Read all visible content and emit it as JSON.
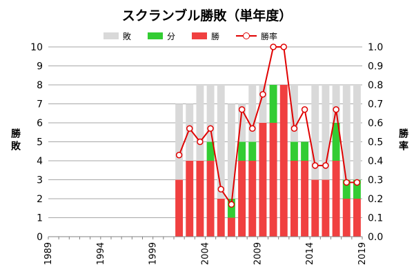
{
  "chart_data": {
    "type": "bar",
    "title": "スクランブル勝敗（単年度）",
    "years": [
      1989,
      1990,
      1991,
      1992,
      1993,
      1994,
      1995,
      1996,
      1997,
      1998,
      1999,
      2000,
      2001,
      2002,
      2003,
      2004,
      2005,
      2006,
      2007,
      2008,
      2009,
      2010,
      2011,
      2012,
      2013,
      2014,
      2015,
      2016,
      2017,
      2018
    ],
    "x_ticks": [
      1989,
      1994,
      1999,
      2004,
      2009,
      2014,
      2019
    ],
    "series": [
      {
        "name": "敗",
        "color": "#d9d9d9",
        "stack": true,
        "values": [
          0,
          0,
          0,
          0,
          0,
          0,
          0,
          0,
          0,
          0,
          0,
          0,
          4,
          3,
          4,
          3,
          6,
          5,
          2,
          3,
          2,
          0,
          0,
          3,
          0,
          5,
          5,
          2,
          5,
          5
        ]
      },
      {
        "name": "分",
        "color": "#33cc33",
        "stack": true,
        "values": [
          0,
          0,
          0,
          0,
          0,
          0,
          0,
          0,
          0,
          0,
          0,
          0,
          0,
          0,
          0,
          1,
          0,
          1,
          1,
          1,
          0,
          2,
          0,
          1,
          1,
          0,
          0,
          2,
          1,
          1
        ]
      },
      {
        "name": "勝",
        "color": "#f04040",
        "stack": true,
        "values": [
          0,
          0,
          0,
          0,
          0,
          0,
          0,
          0,
          0,
          0,
          0,
          0,
          3,
          4,
          4,
          4,
          2,
          1,
          4,
          4,
          6,
          6,
          8,
          4,
          4,
          3,
          3,
          4,
          2,
          2
        ]
      },
      {
        "name": "勝率",
        "color": "#e00000",
        "type": "line",
        "axis": "right",
        "values": [
          null,
          null,
          null,
          null,
          null,
          null,
          null,
          null,
          null,
          null,
          null,
          null,
          0.43,
          0.57,
          0.5,
          0.57,
          0.25,
          0.17,
          0.67,
          0.57,
          0.75,
          1.0,
          1.0,
          0.57,
          0.67,
          0.375,
          0.375,
          0.67,
          0.286,
          0.286
        ]
      }
    ],
    "legend_order": [
      "敗",
      "分",
      "勝",
      "勝率"
    ],
    "y_left": {
      "label": "勝敗",
      "min": 0,
      "max": 10,
      "step": 1,
      "ticks": [
        "0",
        "1",
        "2",
        "3",
        "4",
        "5",
        "6",
        "7",
        "8",
        "9",
        "10"
      ]
    },
    "y_right": {
      "label": "勝率",
      "min": 0,
      "max": 1,
      "step": 0.1,
      "ticks": [
        "0.0",
        "0.1",
        "0.2",
        "0.3",
        "0.4",
        "0.5",
        "0.6",
        "0.7",
        "0.8",
        "0.9",
        "1.0"
      ]
    },
    "legend_position": "top",
    "grid": true
  }
}
